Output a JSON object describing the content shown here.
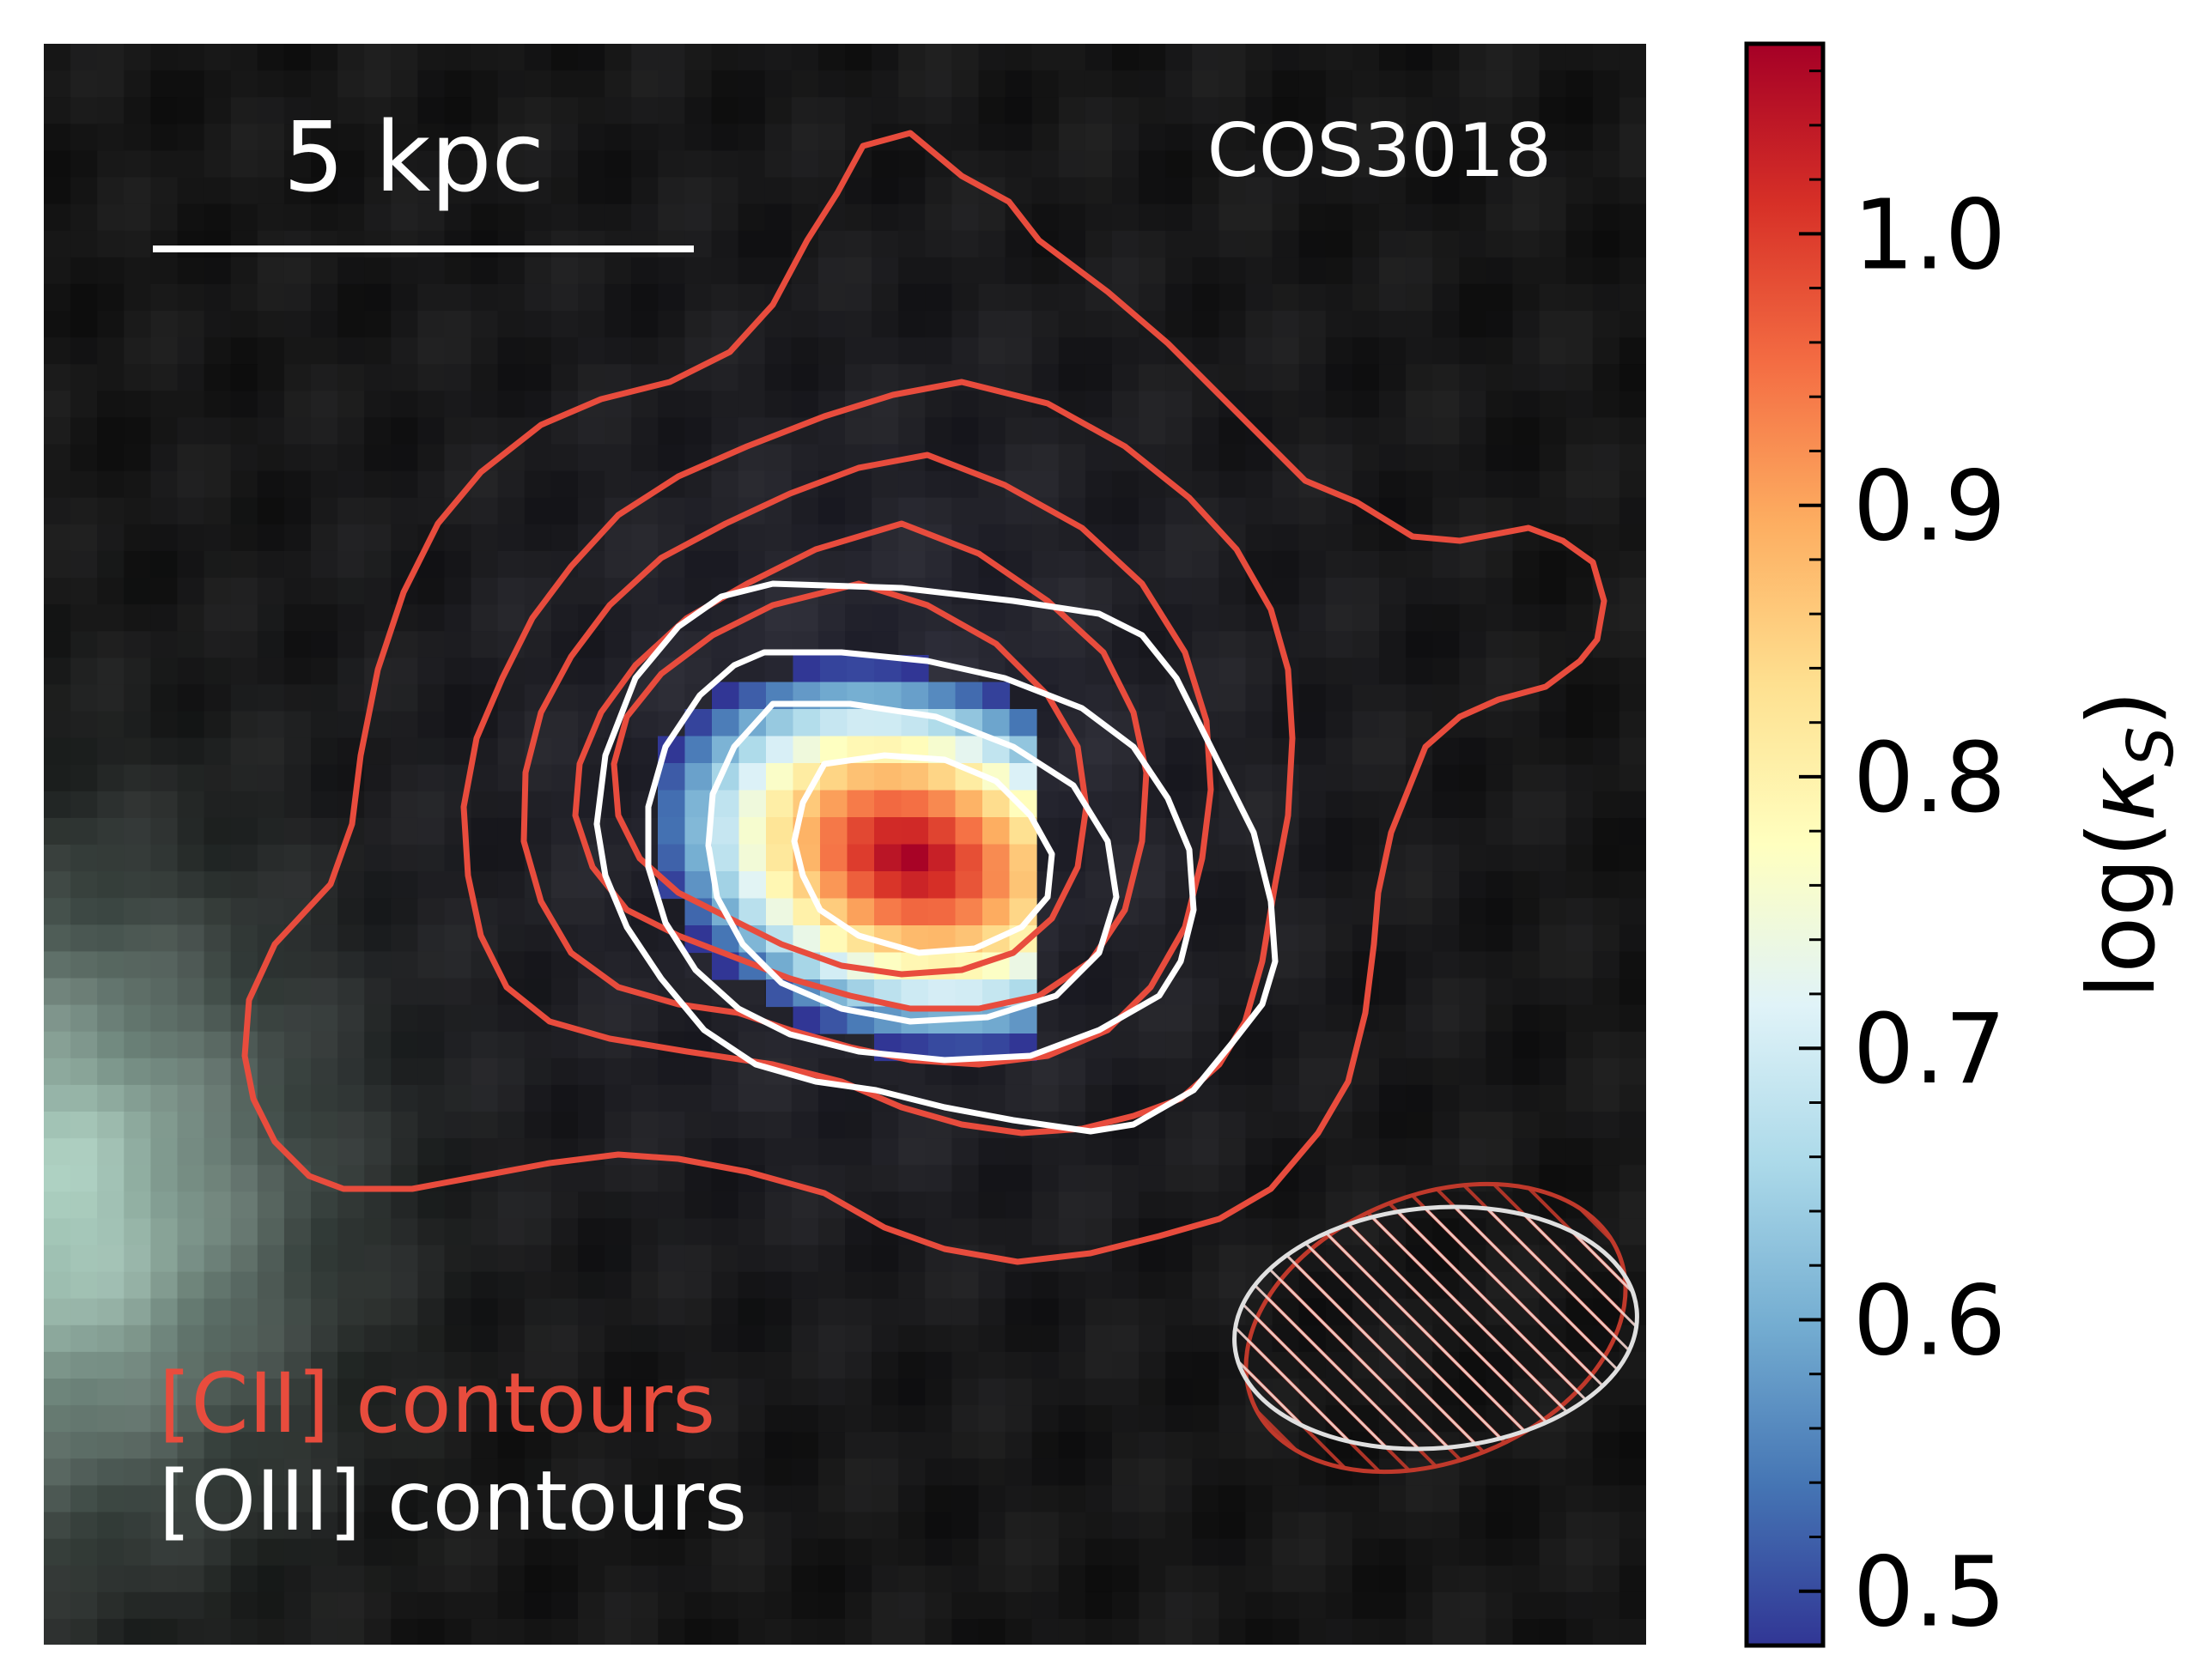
{
  "chart_data": {
    "type": "heatmap",
    "title": "COS3018",
    "scale_bar": {
      "label": "5 kpc",
      "length_kpc": 5
    },
    "colorbar": {
      "label": "log(κS)",
      "label_main": "log(",
      "label_kappa": "κ",
      "label_sub": "S",
      "label_close": ")",
      "colormap": "RdYlBu_r",
      "vmin": 0.48,
      "vmax": 1.07,
      "ticks": [
        0.5,
        0.6,
        0.7,
        0.8,
        0.9,
        1.0
      ],
      "tick_labels": [
        "0.5",
        "0.6",
        "0.7",
        "0.8",
        "0.9",
        "1.0"
      ],
      "minor_step": 0.02
    },
    "legend": {
      "entries": [
        {
          "label": "[CII] contours",
          "color": "#e84c3d"
        },
        {
          "label": "[OIII] contours",
          "color": "#ffffff"
        }
      ],
      "placement": "bottom-left"
    },
    "beams": [
      {
        "name": "[CII] beam",
        "color": "#c0392b",
        "hatch": true
      },
      {
        "name": "[OIII] beam",
        "color": "#e0e0e0",
        "hatch": true
      }
    ],
    "contour_sets": [
      {
        "name": "[CII]",
        "color": "#e84c3d",
        "levels": 5
      },
      {
        "name": "[OIII]",
        "color": "#ffffff",
        "levels": 4
      }
    ],
    "colors": {
      "background": "#16161c",
      "cii": "#e84c3d",
      "oiii": "#ffffff",
      "text": "#ffffff",
      "axis": "#000000"
    }
  }
}
